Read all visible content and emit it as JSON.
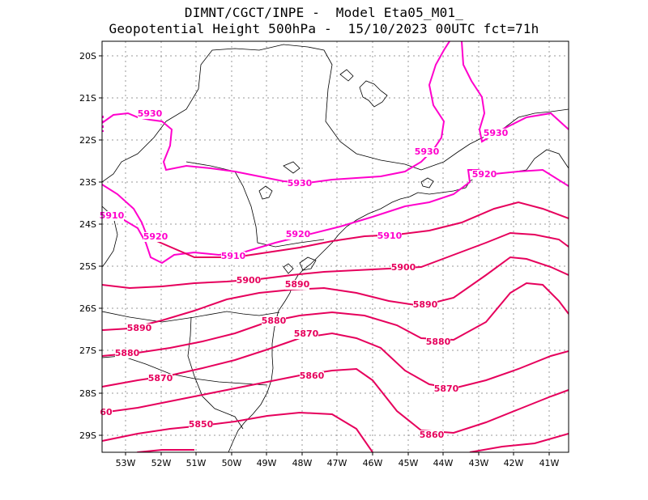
{
  "title": {
    "line1": "DIMNT/CGCT/INPE -  Model Eta05_M01_",
    "line2": "Geopotential Height 500hPa -  15/10/2023 00UTC fct=71h"
  },
  "axes": {
    "lat_labels": [
      "20S",
      "21S",
      "22S",
      "23S",
      "24S",
      "25S",
      "26S",
      "27S",
      "28S",
      "29S"
    ],
    "lon_labels": [
      "53W",
      "52W",
      "51W",
      "50W",
      "49W",
      "48W",
      "47W",
      "46W",
      "45W",
      "44W",
      "43W",
      "42W",
      "41W"
    ]
  },
  "colors": {
    "contour_low": "#e6005c",
    "contour_high": "#ff00cc",
    "coast": "#000000",
    "grid": "#999999"
  },
  "contours": [
    {
      "value": 5930,
      "labels": [
        {
          "text": "5930"
        },
        {
          "text": "5930"
        },
        {
          "text": "5930"
        },
        {
          "text": "5930"
        }
      ]
    },
    {
      "value": 5920,
      "labels": [
        {
          "text": "5920"
        },
        {
          "text": "5920"
        },
        {
          "text": "5920"
        }
      ]
    },
    {
      "value": 5910,
      "labels": [
        {
          "text": "5910"
        },
        {
          "text": "5910"
        },
        {
          "text": "5910"
        }
      ]
    },
    {
      "value": 5900,
      "labels": [
        {
          "text": "5900"
        },
        {
          "text": "5900"
        }
      ]
    },
    {
      "value": 5890,
      "labels": [
        {
          "text": "5890"
        },
        {
          "text": "5890"
        },
        {
          "text": "5890"
        }
      ]
    },
    {
      "value": 5880,
      "labels": [
        {
          "text": "5880"
        },
        {
          "text": "5880"
        },
        {
          "text": "5880"
        }
      ]
    },
    {
      "value": 5870,
      "labels": [
        {
          "text": "5870"
        },
        {
          "text": "5870"
        },
        {
          "text": "5870"
        }
      ]
    },
    {
      "value": 5860,
      "labels": [
        {
          "text": "5860"
        },
        {
          "text": "5860"
        },
        {
          "text": "60"
        }
      ]
    },
    {
      "value": 5850,
      "labels": [
        {
          "text": "5850"
        }
      ]
    }
  ]
}
